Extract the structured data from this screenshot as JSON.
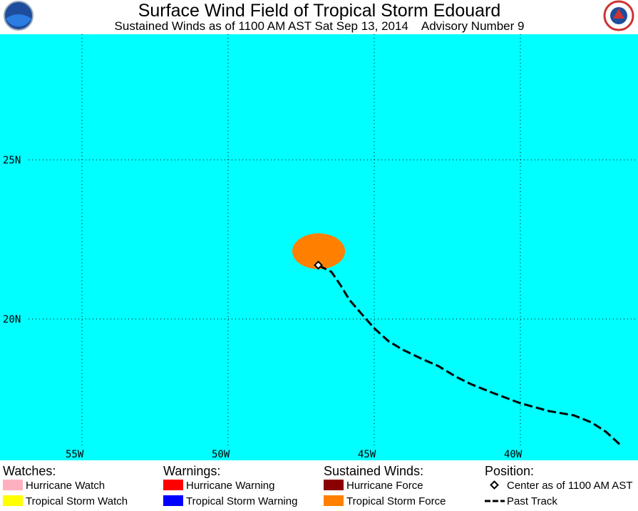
{
  "header": {
    "title": "Surface Wind Field of Tropical Storm Edouard",
    "subtitle": "Sustained Winds as of 1100 AM AST Sat Sep 13, 2014",
    "advisory": "Advisory Number 9"
  },
  "map": {
    "lat_labels": [
      "25N",
      "20N"
    ],
    "lon_labels": [
      "55W",
      "50W",
      "45W",
      "40W"
    ]
  },
  "legend": {
    "groups": [
      {
        "title": "Watches:",
        "items": [
          {
            "label": "Hurricane Watch"
          },
          {
            "label": "Tropical Storm Watch"
          }
        ]
      },
      {
        "title": "Warnings:",
        "items": [
          {
            "label": "Hurricane Warning"
          },
          {
            "label": "Tropical Storm Warning"
          }
        ]
      },
      {
        "title": "Sustained Winds:",
        "items": [
          {
            "label": "Hurricane Force"
          },
          {
            "label": "Tropical Storm Force"
          }
        ]
      },
      {
        "title": "Position:",
        "items": [
          {
            "label": "Center as of 1100 AM AST"
          },
          {
            "label": "Past Track"
          }
        ]
      }
    ]
  }
}
